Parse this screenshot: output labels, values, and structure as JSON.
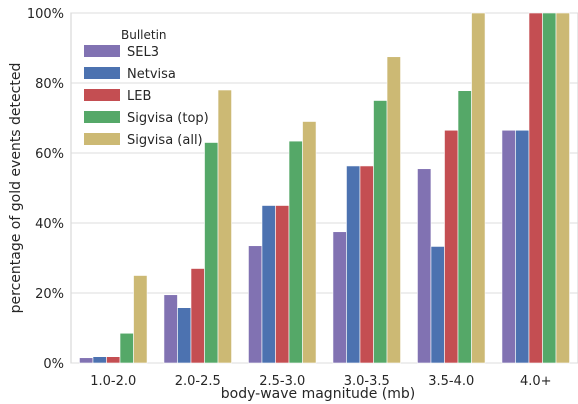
{
  "chart_data": {
    "type": "bar",
    "categories": [
      "1.0-2.0",
      "2.0-2.5",
      "2.5-3.0",
      "3.0-3.5",
      "3.5-4.0",
      "4.0+"
    ],
    "series": [
      {
        "name": "SEL3",
        "color": "#8172b2",
        "values": [
          1.5,
          19.5,
          33.5,
          37.5,
          55.5,
          66.5
        ]
      },
      {
        "name": "Netvisa",
        "color": "#4c72b0",
        "values": [
          1.8,
          15.8,
          45.0,
          56.3,
          33.3,
          66.5
        ]
      },
      {
        "name": "LEB",
        "color": "#c44e52",
        "values": [
          1.8,
          27.0,
          45.0,
          56.3,
          66.5,
          100
        ]
      },
      {
        "name": "Sigvisa (top)",
        "color": "#55a868",
        "values": [
          8.5,
          63.0,
          63.4,
          75.0,
          77.8,
          100
        ]
      },
      {
        "name": "Sigvisa (all)",
        "color": "#ccb974",
        "values": [
          25.0,
          78.0,
          69.0,
          87.5,
          100,
          100
        ]
      }
    ],
    "title": "",
    "xlabel": "body-wave magnitude (mb)",
    "ylabel": "percentage of gold events detected",
    "ylim": [
      0,
      100
    ],
    "yticks": [
      0,
      20,
      40,
      60,
      80,
      100
    ],
    "ytick_labels": [
      "0%",
      "20%",
      "40%",
      "60%",
      "80%",
      "100%"
    ],
    "grid": "horizontal",
    "legend": {
      "title": "Bulletin",
      "placement": "top-left"
    }
  }
}
